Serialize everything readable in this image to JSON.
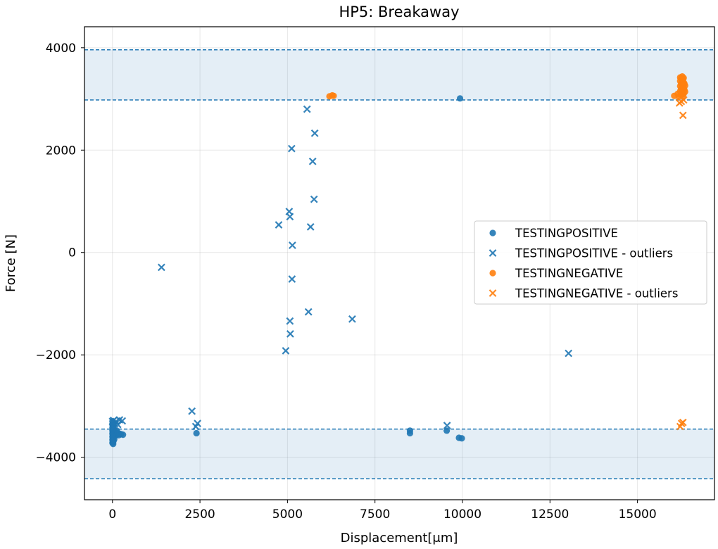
{
  "chart_data": {
    "type": "scatter",
    "title": "HP5: Breakaway",
    "xlabel": "Displacement[μm]",
    "ylabel": "Force [N]",
    "xlim": [
      -800,
      17200
    ],
    "ylim": [
      -4830,
      4410
    ],
    "xticks": [
      0,
      2500,
      5000,
      7500,
      10000,
      12500,
      15000
    ],
    "xtick_labels": [
      "0",
      "2500",
      "5000",
      "7500",
      "10000",
      "12500",
      "15000"
    ],
    "yticks": [
      -4000,
      -2000,
      0,
      2000,
      4000
    ],
    "ytick_labels": [
      "−4000",
      "−2000",
      "0",
      "2000",
      "4000"
    ],
    "grid": true,
    "legend_position": "center-right",
    "colors": {
      "blue": "#1f77b4",
      "orange": "#ff7f0e"
    },
    "bands": [
      {
        "name": "upper-tolerance-band",
        "y_low": 2980,
        "y_high": 3960
      },
      {
        "name": "lower-tolerance-band",
        "y_low": -4420,
        "y_high -": 0,
        "y_high": -3450
      }
    ],
    "series": [
      {
        "name": "TESTINGPOSITIVE",
        "marker": "circle",
        "color": "#1f77b4",
        "points": [
          [
            0,
            -3300
          ],
          [
            0,
            -3360
          ],
          [
            0,
            -3420
          ],
          [
            0,
            -3480
          ],
          [
            0,
            -3540
          ],
          [
            0,
            -3600
          ],
          [
            0,
            -3660
          ],
          [
            0,
            -3720
          ],
          [
            10,
            -3380
          ],
          [
            10,
            -3450
          ],
          [
            10,
            -3510
          ],
          [
            10,
            -3580
          ],
          [
            10,
            -3640
          ],
          [
            10,
            -3700
          ],
          [
            20,
            -3320
          ],
          [
            20,
            -3400
          ],
          [
            20,
            -3470
          ],
          [
            20,
            -3550
          ],
          [
            20,
            -3620
          ],
          [
            20,
            -3690
          ],
          [
            20,
            -3740
          ],
          [
            30,
            -3350
          ],
          [
            30,
            -3440
          ],
          [
            30,
            -3530
          ],
          [
            30,
            -3610
          ],
          [
            30,
            -3680
          ],
          [
            50,
            -3460
          ],
          [
            50,
            -3560
          ],
          [
            50,
            -3650
          ],
          [
            80,
            -3500
          ],
          [
            80,
            -3580
          ],
          [
            120,
            -3480
          ],
          [
            120,
            -3560
          ],
          [
            150,
            -3520
          ],
          [
            180,
            -3570
          ],
          [
            200,
            -3540
          ],
          [
            250,
            -3550
          ],
          [
            300,
            -3560
          ],
          [
            2400,
            -3530
          ],
          [
            8500,
            -3480
          ],
          [
            8500,
            -3530
          ],
          [
            9550,
            -3480
          ],
          [
            9900,
            -3620
          ],
          [
            9980,
            -3630
          ],
          [
            9930,
            3010
          ]
        ]
      },
      {
        "name": "TESTINGPOSITIVE - outliers",
        "marker": "x",
        "color": "#1f77b4",
        "points": [
          [
            0,
            -3300
          ],
          [
            30,
            -3280
          ],
          [
            60,
            -3350
          ],
          [
            100,
            -3300
          ],
          [
            150,
            -3360
          ],
          [
            200,
            -3270
          ],
          [
            280,
            -3290
          ],
          [
            1400,
            -290
          ],
          [
            2270,
            -3100
          ],
          [
            2380,
            -3400
          ],
          [
            2430,
            -3340
          ],
          [
            4750,
            540
          ],
          [
            4950,
            -1920
          ],
          [
            5050,
            800
          ],
          [
            5070,
            700
          ],
          [
            5070,
            -1340
          ],
          [
            5080,
            -1590
          ],
          [
            5120,
            2030
          ],
          [
            5130,
            -520
          ],
          [
            5140,
            140
          ],
          [
            5560,
            2800
          ],
          [
            5600,
            -1160
          ],
          [
            5660,
            500
          ],
          [
            5720,
            1780
          ],
          [
            5760,
            1040
          ],
          [
            5780,
            2330
          ],
          [
            6850,
            -1300
          ],
          [
            9560,
            -3380
          ],
          [
            13030,
            -1970
          ]
        ]
      },
      {
        "name": "TESTINGNEGATIVE",
        "marker": "circle",
        "color": "#ff7f0e",
        "points": [
          [
            6200,
            3050
          ],
          [
            6280,
            3070
          ],
          [
            6320,
            3060
          ],
          [
            16050,
            3060
          ],
          [
            16150,
            3100
          ],
          [
            16180,
            3040
          ],
          [
            16220,
            3150
          ],
          [
            16220,
            3250
          ],
          [
            16220,
            3350
          ],
          [
            16220,
            3420
          ],
          [
            16250,
            3080
          ],
          [
            16250,
            3200
          ],
          [
            16250,
            3300
          ],
          [
            16250,
            3400
          ],
          [
            16280,
            3120
          ],
          [
            16280,
            3230
          ],
          [
            16280,
            3330
          ],
          [
            16280,
            3440
          ],
          [
            16300,
            3050
          ],
          [
            16300,
            3170
          ],
          [
            16300,
            3280
          ],
          [
            16300,
            3380
          ],
          [
            16320,
            3100
          ],
          [
            16320,
            3220
          ],
          [
            16320,
            3320
          ],
          [
            16320,
            3410
          ],
          [
            16340,
            3180
          ],
          [
            16340,
            3300
          ],
          [
            16360,
            3140
          ],
          [
            16360,
            3260
          ]
        ]
      },
      {
        "name": "TESTINGNEGATIVE - outliers",
        "marker": "x",
        "color": "#ff7f0e",
        "points": [
          [
            16200,
            2920
          ],
          [
            16250,
            2950
          ],
          [
            16300,
            2680
          ],
          [
            16320,
            2980
          ],
          [
            16220,
            -3400
          ],
          [
            16260,
            -3340
          ],
          [
            16300,
            -3320
          ]
        ]
      }
    ]
  }
}
